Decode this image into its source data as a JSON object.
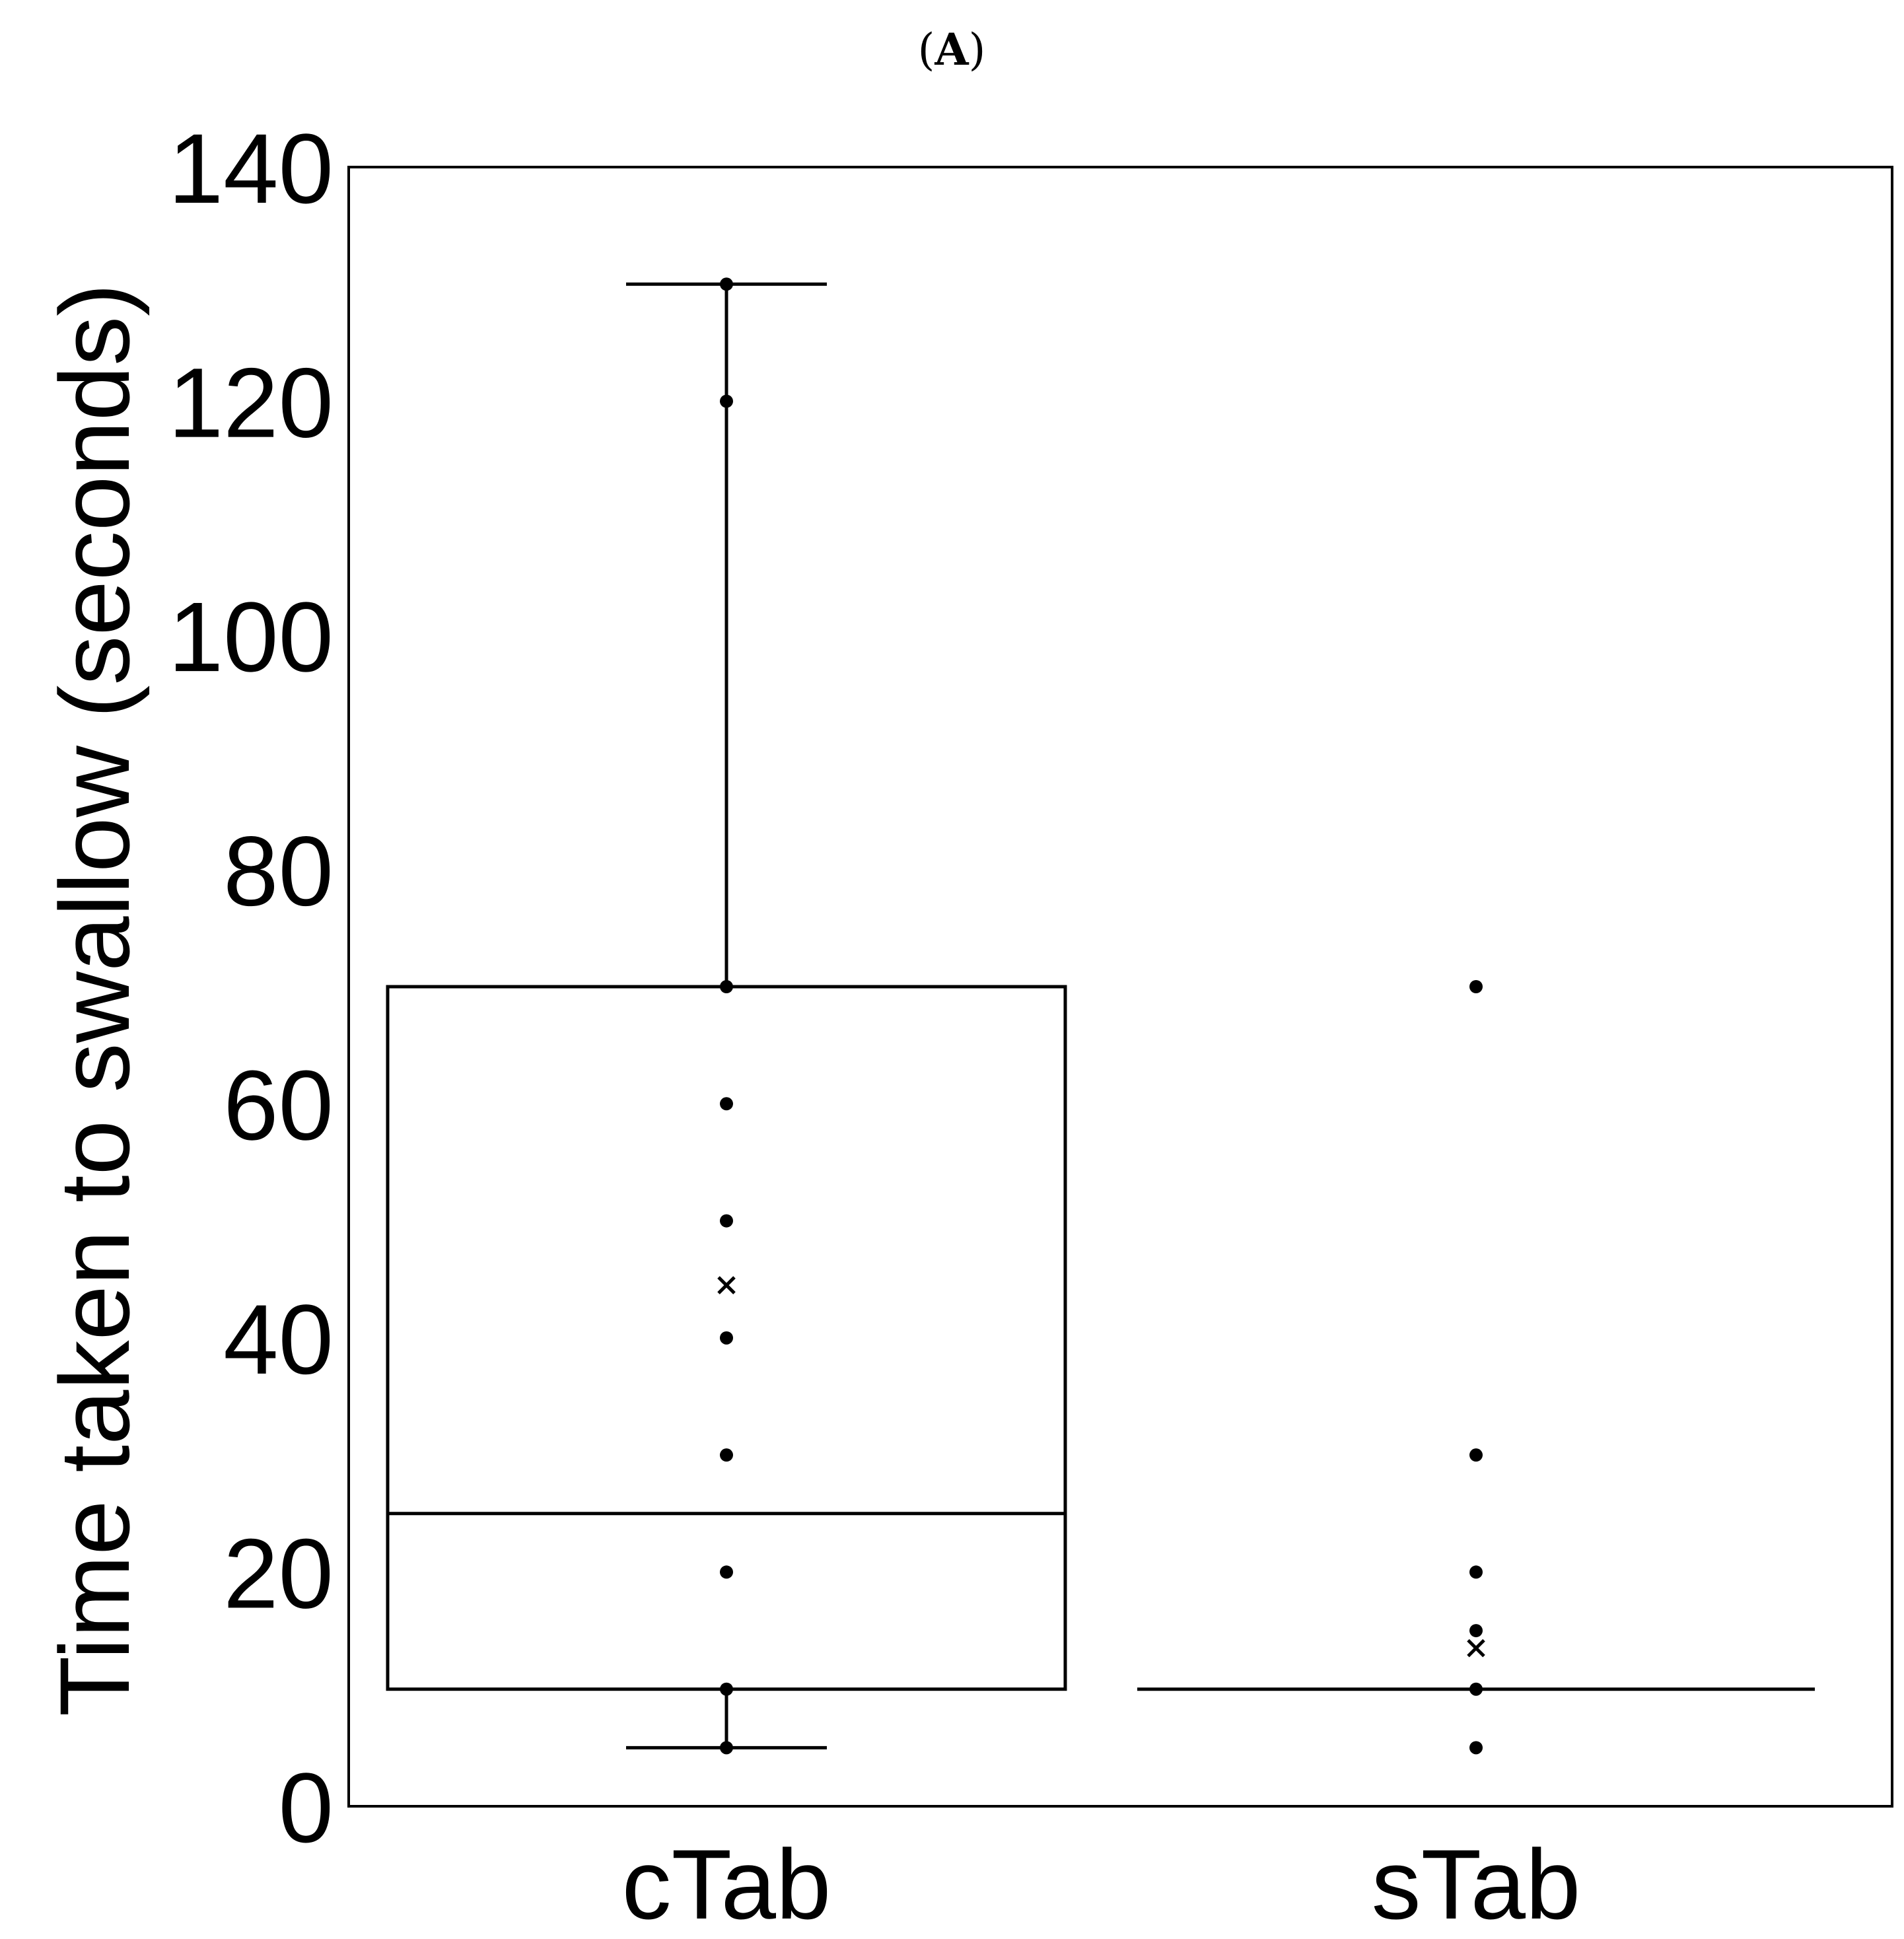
{
  "panel": {
    "open": "(",
    "letter": "A",
    "close": ")"
  },
  "chart_data": {
    "type": "box",
    "title": "",
    "ylabel": "Time taken to swallow (seconds)",
    "xlabel": "",
    "ylim": [
      0,
      140
    ],
    "yticks": [
      "0",
      "20",
      "40",
      "60",
      "80",
      "100",
      "120",
      "140"
    ],
    "categories": [
      "cTab",
      "sTab"
    ],
    "grid": false,
    "legend": "none",
    "boxes": [
      {
        "category": "cTab",
        "whisker_low": 5,
        "q1": 10,
        "median": 25,
        "q3": 70,
        "whisker_high": 130,
        "mean": 44.5,
        "points": [
          5,
          10,
          20,
          30,
          40,
          50,
          60,
          70,
          120,
          130
        ]
      },
      {
        "category": "sTab",
        "whisker_low": 10,
        "q1": 10,
        "median": 10,
        "q3": 10,
        "whisker_high": 10,
        "mean": 13.5,
        "points": [
          5,
          10,
          15,
          20,
          30,
          70
        ]
      }
    ],
    "colors": {
      "line": "#000000",
      "background": "#ffffff"
    }
  }
}
